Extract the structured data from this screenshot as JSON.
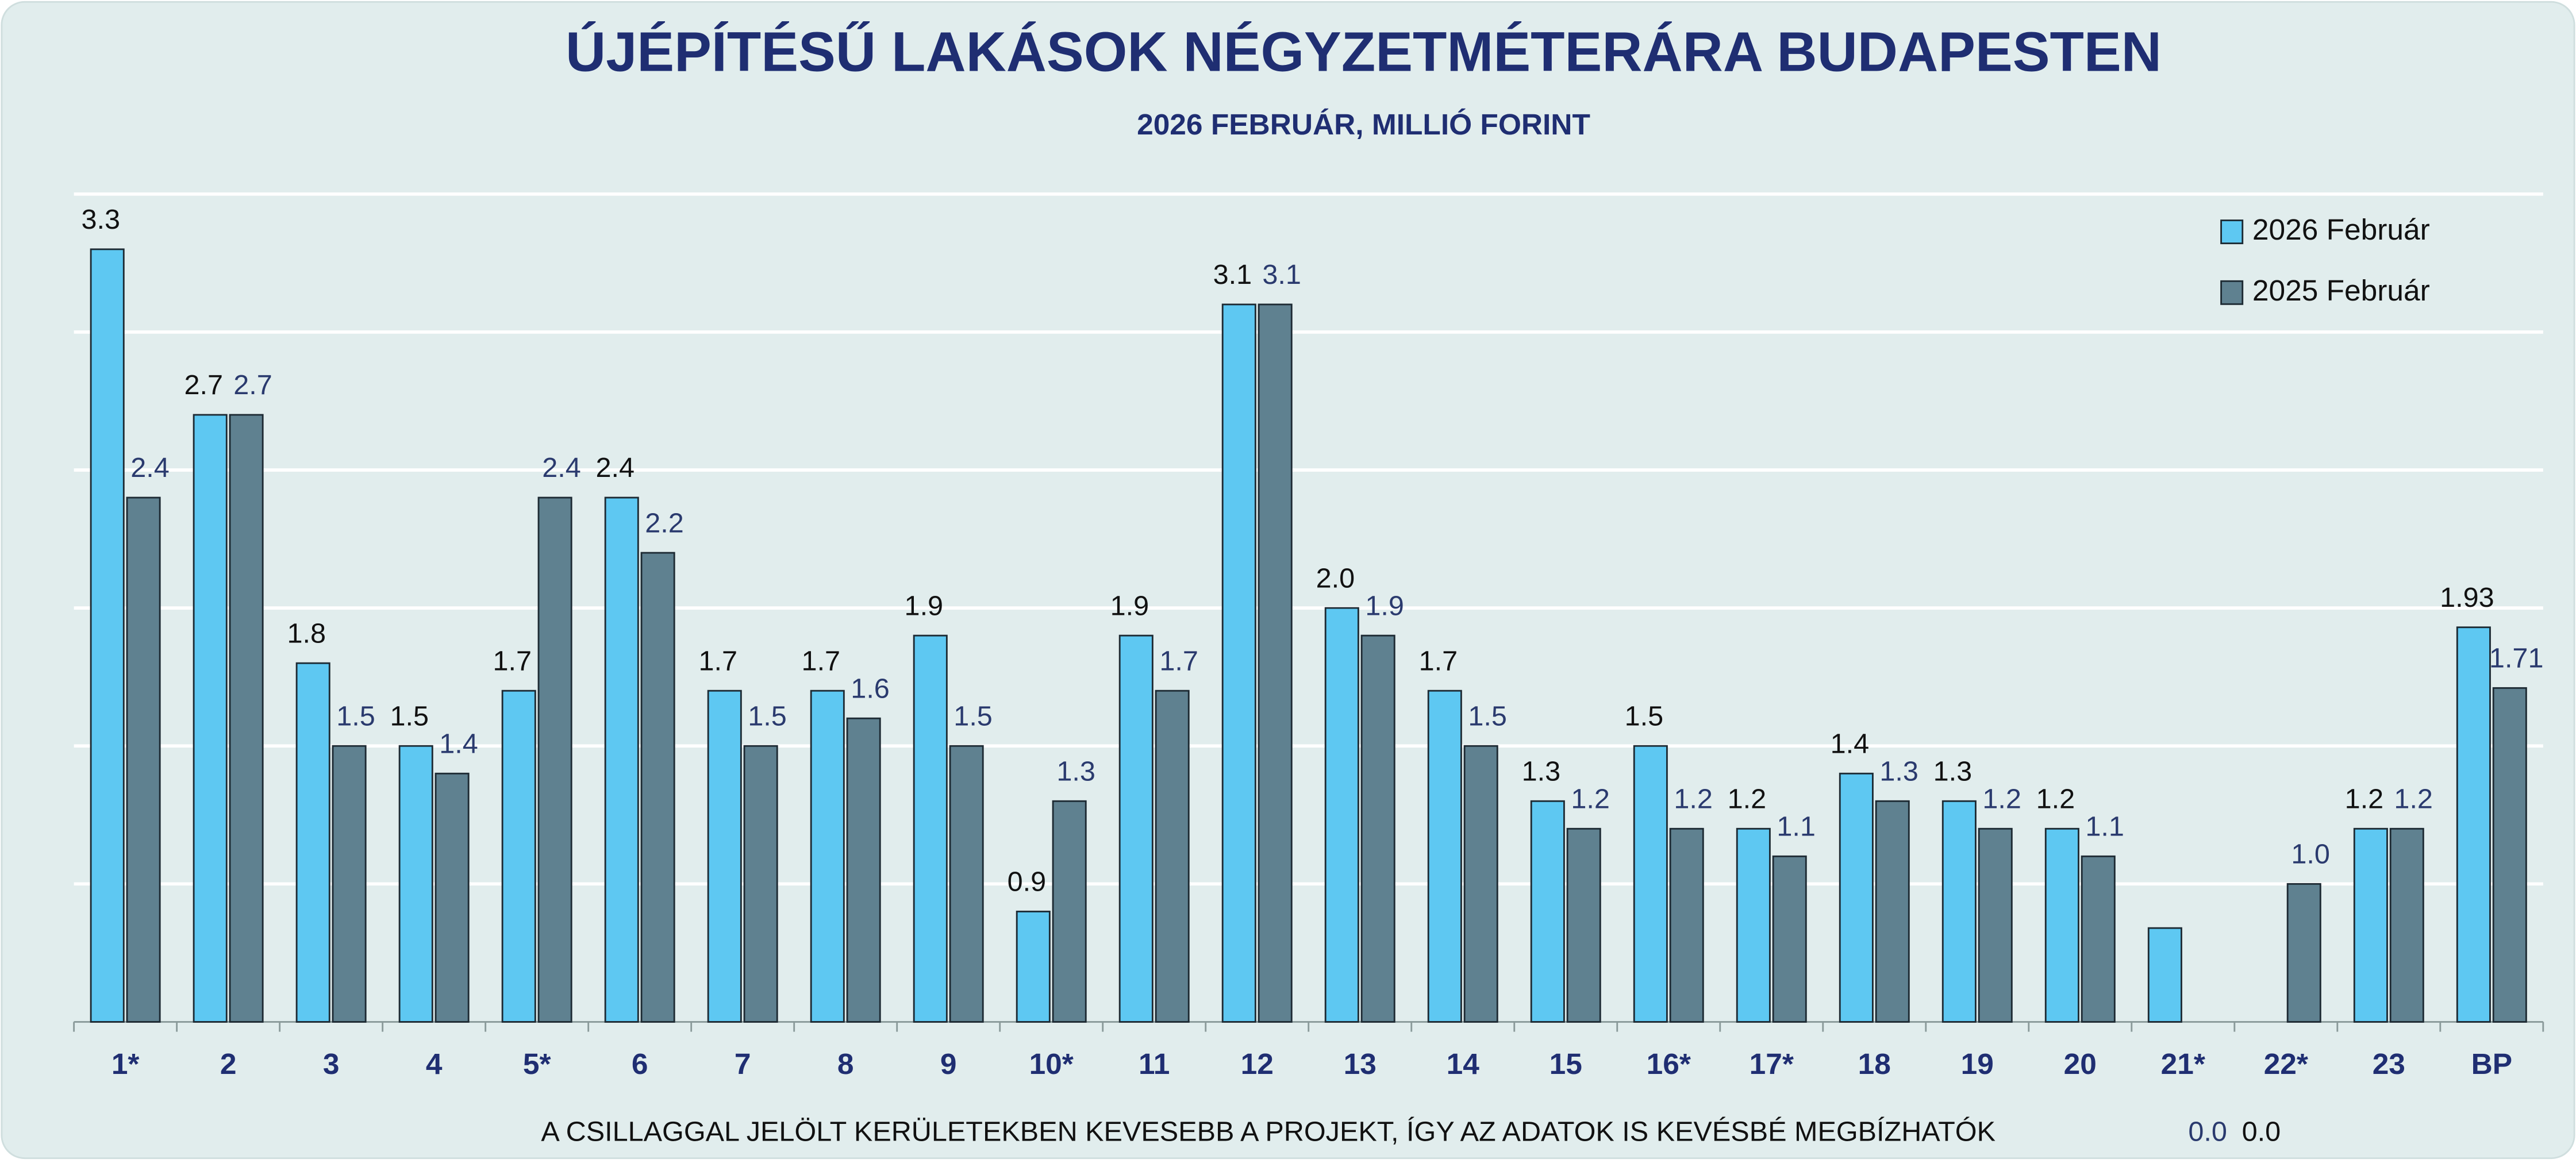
{
  "chart_data": {
    "type": "bar",
    "title": "ÚJÉPÍTÉSŰ LAKÁSOK NÉGYZETMÉTERÁRA BUDAPESTEN",
    "subtitle": "2026 FEBRUÁR, MILLIÓ FORINT",
    "annotation": "A CSILLAGGAL JELÖLT KERÜLETEKBEN KEVESEBB A PROJEKT, ÍGY AZ ADATOK IS KEVÉSBÉ MEGBÍZHATÓK",
    "categories": [
      "1*",
      "2",
      "3",
      "4",
      "5*",
      "6",
      "7",
      "8",
      "9",
      "10*",
      "11",
      "12",
      "13",
      "14",
      "15",
      "16*",
      "17*",
      "18",
      "19",
      "20",
      "21*",
      "22*",
      "23",
      "BP"
    ],
    "series": [
      {
        "name": "2026 Február",
        "color": "#5ec8f2",
        "values": [
          3.3,
          2.7,
          1.8,
          1.5,
          1.7,
          2.4,
          1.7,
          1.7,
          1.9,
          0.9,
          1.9,
          3.1,
          2.0,
          1.7,
          1.3,
          1.5,
          1.2,
          1.4,
          1.3,
          1.2,
          0.84,
          0.0,
          1.2,
          1.93
        ],
        "value_labels": [
          "3.3",
          "2.7",
          "1.8",
          "1.5",
          "1.7",
          "2.4",
          "1.7",
          "1.7",
          "1.9",
          "0.9",
          "1.9",
          "3.1",
          "2.0",
          "1.7",
          "1.3",
          "1.5",
          "1.2",
          "1.4",
          "1.3",
          "1.2",
          null,
          "0.0",
          "1.2",
          "1.93"
        ]
      },
      {
        "name": "2025 Február",
        "color": "#5f8190",
        "values": [
          2.4,
          2.7,
          1.5,
          1.4,
          2.4,
          2.2,
          1.5,
          1.6,
          1.5,
          1.3,
          1.7,
          3.1,
          1.9,
          1.5,
          1.2,
          1.2,
          1.1,
          1.3,
          1.2,
          1.1,
          0.0,
          1.0,
          1.2,
          1.71
        ],
        "value_labels": [
          "2.4",
          "2.7",
          "1.5",
          "1.4",
          "2.4",
          "2.2",
          "1.5",
          "1.6",
          "1.5",
          "1.3",
          "1.7",
          "3.1",
          "1.9",
          "1.5",
          "1.2",
          "1.2",
          "1.1",
          "1.3",
          "1.2",
          "1.1",
          "0.0",
          "1.0",
          "1.2",
          "1.71"
        ]
      }
    ],
    "ylim": [
      0.5,
      3.5
    ],
    "yticks": [
      0.5,
      1,
      1.5,
      2,
      2.5,
      3,
      3.5
    ],
    "grid": true,
    "legend": "top-right"
  }
}
